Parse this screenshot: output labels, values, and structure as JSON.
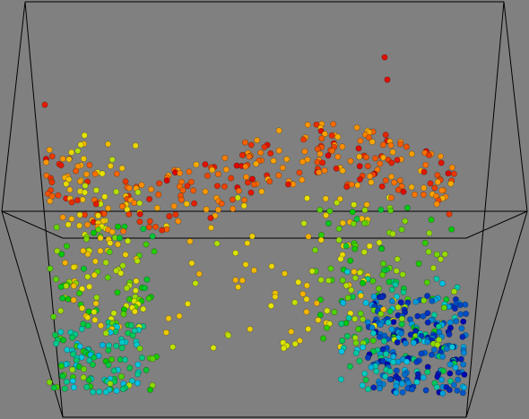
{
  "background_color": "#808080",
  "chart_data": {
    "type": "scatter",
    "title": "",
    "xlabel": "",
    "ylabel": "",
    "zlabel": "",
    "grid": false,
    "legend": "none",
    "xlim": [
      0,
      1
    ],
    "ylim": [
      0,
      1
    ],
    "zlim": [
      0,
      1
    ],
    "color_scale": [
      "#0000b0",
      "#00c8e6",
      "#00c800",
      "#e6e600",
      "#ff8c00",
      "#dc0000"
    ],
    "color_by": "c",
    "series": [
      {
        "generator": "swiss-roll",
        "count": 1040,
        "box_edges": [
          [
            0,
            0,
            0,
            1,
            0,
            0
          ],
          [
            1,
            0,
            0,
            1,
            1,
            0
          ],
          [
            1,
            1,
            0,
            0,
            1,
            0
          ],
          [
            0,
            1,
            0,
            0,
            0,
            0
          ],
          [
            0,
            0,
            1,
            1,
            0,
            1
          ],
          [
            1,
            0,
            1,
            1,
            1,
            1
          ],
          [
            1,
            1,
            1,
            0,
            1,
            1
          ],
          [
            0,
            1,
            1,
            0,
            0,
            1
          ],
          [
            0,
            0,
            0,
            0,
            0,
            1
          ],
          [
            1,
            0,
            0,
            1,
            0,
            1
          ],
          [
            1,
            1,
            0,
            1,
            1,
            1
          ],
          [
            0,
            1,
            0,
            0,
            1,
            1
          ]
        ]
      }
    ]
  }
}
